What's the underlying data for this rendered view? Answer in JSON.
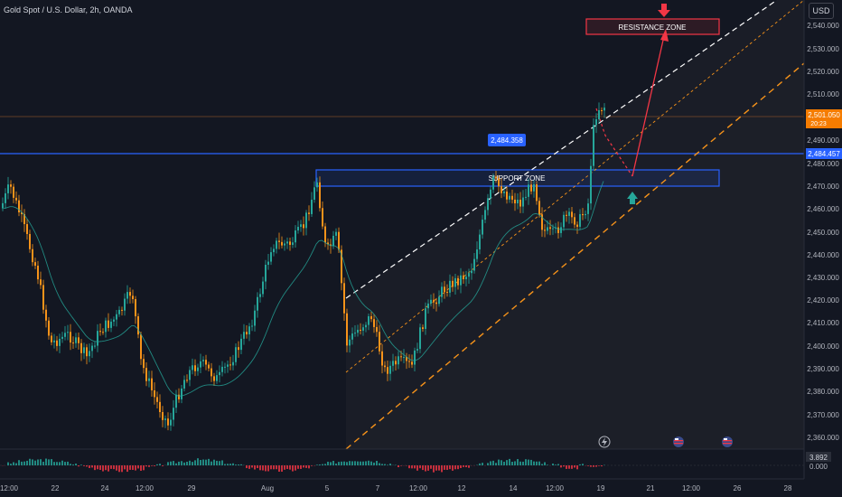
{
  "title": "Gold Spot / U.S. Dollar, 2h, OANDA",
  "unit": "USD",
  "price_labels": [
    "2,540.000",
    "2,530.000",
    "2,520.000",
    "2,510.000",
    "2,490.000",
    "2,480.000",
    "2,470.000",
    "2,460.000",
    "2,450.000",
    "2,440.000",
    "2,430.000",
    "2,420.000",
    "2,410.000",
    "2,400.000",
    "2,390.000",
    "2,380.000",
    "2,370.000",
    "2,360.000"
  ],
  "time_labels": [
    "12:00",
    "22",
    "24",
    "12:00",
    "29",
    "Aug",
    "5",
    "7",
    "12:00",
    "12",
    "14",
    "12:00",
    "19",
    "21",
    "12:00",
    "26",
    "28"
  ],
  "current_price": {
    "value": "2,501.050",
    "countdown": "20:23"
  },
  "level_price": "2,484.457",
  "callout_price": "2,484.358",
  "support_label": "SUPPORT ZONE",
  "resistance_label": "RESISTANCE ZONE",
  "oscillator": {
    "value": "3.892",
    "zero": "0.000"
  },
  "colors": {
    "bull": "#26a69a",
    "bear": "#f7931a",
    "accent": "#2962ff",
    "resistance": "#f23645",
    "current": "#f57c00"
  },
  "icons": [
    "lightning-icon",
    "us-flag-icon",
    "us-flag-icon"
  ]
}
